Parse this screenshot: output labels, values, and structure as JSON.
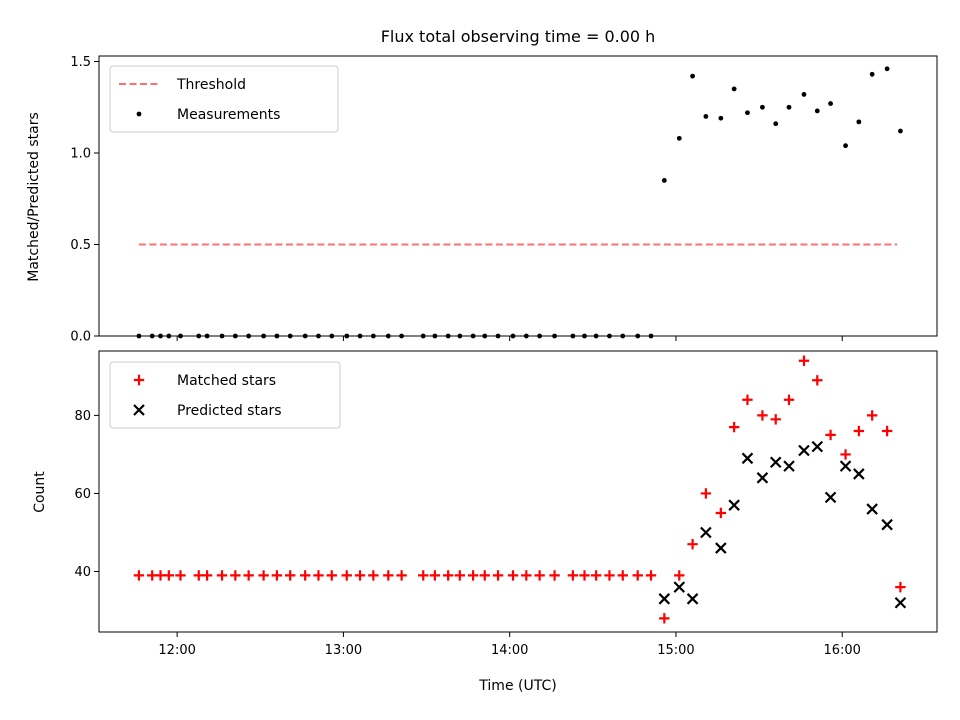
{
  "title": "Flux total observing time = 0.00 h",
  "chart_data": [
    {
      "type": "scatter",
      "ylabel": "Matched/Predicted stars",
      "xlim": [
        11.53,
        16.57
      ],
      "ylim": [
        0,
        1.53
      ],
      "yticks": [
        0.0,
        0.5,
        1.0,
        1.5
      ],
      "ytick_labels": [
        "0.0",
        "0.5",
        "1.0",
        "1.5"
      ],
      "xticks": [
        12,
        13,
        14,
        15,
        16
      ],
      "legend": {
        "placement": "upper-left"
      },
      "series": [
        {
          "name": "Threshold",
          "kind": "line",
          "color": "#ff7070",
          "style": "dashed",
          "x": [
            11.77,
            16.33
          ],
          "y": [
            0.5,
            0.5
          ]
        },
        {
          "name": "Measurements",
          "kind": "dot",
          "color": "#000000",
          "x": [
            11.77,
            11.85,
            11.9,
            11.95,
            12.02,
            12.13,
            12.18,
            12.27,
            12.35,
            12.43,
            12.52,
            12.6,
            12.68,
            12.77,
            12.85,
            12.93,
            13.02,
            13.1,
            13.18,
            13.27,
            13.35,
            13.48,
            13.55,
            13.63,
            13.7,
            13.78,
            13.85,
            13.93,
            14.02,
            14.1,
            14.18,
            14.27,
            14.38,
            14.45,
            14.52,
            14.6,
            14.68,
            14.77,
            14.85,
            14.93,
            15.02,
            15.1,
            15.18,
            15.27,
            15.35,
            15.43,
            15.52,
            15.6,
            15.68,
            15.77,
            15.85,
            15.93,
            16.02,
            16.1,
            16.18,
            16.27,
            16.35
          ],
          "y": [
            0,
            0,
            0,
            0,
            0,
            0,
            0,
            0,
            0,
            0,
            0,
            0,
            0,
            0,
            0,
            0,
            0,
            0,
            0,
            0,
            0,
            0,
            0,
            0,
            0,
            0,
            0,
            0,
            0,
            0,
            0,
            0,
            0,
            0,
            0,
            0,
            0,
            0,
            0,
            0.85,
            1.08,
            1.42,
            1.2,
            1.19,
            1.35,
            1.22,
            1.25,
            1.16,
            1.25,
            1.32,
            1.23,
            1.27,
            1.04,
            1.17,
            1.43,
            1.46,
            1.12
          ]
        }
      ]
    },
    {
      "type": "scatter",
      "xlabel": "Time (UTC)",
      "ylabel": "Count",
      "xlim": [
        11.53,
        16.57
      ],
      "ylim": [
        24.5,
        96.5
      ],
      "yticks": [
        40,
        60,
        80
      ],
      "ytick_labels": [
        "40",
        "60",
        "80"
      ],
      "xticks": [
        12,
        13,
        14,
        15,
        16
      ],
      "xtick_labels": [
        "12:00",
        "13:00",
        "14:00",
        "15:00",
        "16:00"
      ],
      "legend": {
        "placement": "upper-left"
      },
      "series": [
        {
          "name": "Matched stars",
          "kind": "plus",
          "color": "#ff0000",
          "x": [
            11.77,
            11.85,
            11.9,
            11.95,
            12.02,
            12.13,
            12.18,
            12.27,
            12.35,
            12.43,
            12.52,
            12.6,
            12.68,
            12.77,
            12.85,
            12.93,
            13.02,
            13.1,
            13.18,
            13.27,
            13.35,
            13.48,
            13.55,
            13.63,
            13.7,
            13.78,
            13.85,
            13.93,
            14.02,
            14.1,
            14.18,
            14.27,
            14.38,
            14.45,
            14.52,
            14.6,
            14.68,
            14.77,
            14.85,
            14.93,
            15.02,
            15.1,
            15.18,
            15.27,
            15.35,
            15.43,
            15.52,
            15.6,
            15.68,
            15.77,
            15.85,
            15.93,
            16.02,
            16.1,
            16.18,
            16.27,
            16.35
          ],
          "y": [
            39,
            39,
            39,
            39,
            39,
            39,
            39,
            39,
            39,
            39,
            39,
            39,
            39,
            39,
            39,
            39,
            39,
            39,
            39,
            39,
            39,
            39,
            39,
            39,
            39,
            39,
            39,
            39,
            39,
            39,
            39,
            39,
            39,
            39,
            39,
            39,
            39,
            39,
            39,
            28,
            39,
            47,
            60,
            55,
            77,
            84,
            80,
            79,
            84,
            94,
            89,
            75,
            70,
            76,
            80,
            76,
            36
          ]
        },
        {
          "name": "Predicted stars",
          "kind": "x",
          "color": "#000000",
          "x": [
            14.93,
            15.02,
            15.1,
            15.18,
            15.27,
            15.35,
            15.43,
            15.52,
            15.6,
            15.68,
            15.77,
            15.85,
            15.93,
            16.02,
            16.1,
            16.18,
            16.27,
            16.35
          ],
          "y": [
            33,
            36,
            33,
            50,
            46,
            57,
            69,
            64,
            68,
            67,
            71,
            72,
            59,
            67,
            65,
            56,
            52,
            32
          ]
        }
      ]
    }
  ]
}
